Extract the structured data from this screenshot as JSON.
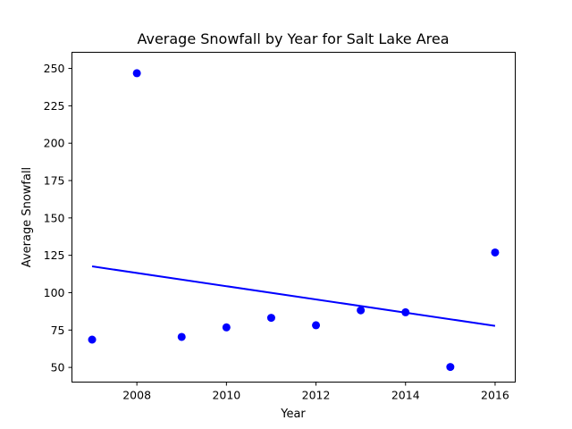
{
  "chart_data": {
    "type": "scatter",
    "title": "Average Snowfall by Year for Salt Lake Area",
    "xlabel": "Year",
    "ylabel": "Average Snowfall",
    "xlim": [
      2006.55,
      2016.45
    ],
    "ylim": [
      40.2,
      260.8
    ],
    "xticks": [
      2008,
      2010,
      2012,
      2014,
      2016
    ],
    "yticks": [
      50,
      75,
      100,
      125,
      150,
      175,
      200,
      225,
      250
    ],
    "grid": false,
    "series": [
      {
        "type": "scatter",
        "color": "#0000ff",
        "x": [
          2007,
          2008,
          2009,
          2010,
          2011,
          2012,
          2013,
          2014,
          2015,
          2016
        ],
        "y": [
          68.6,
          246.8,
          70.4,
          76.8,
          83.2,
          78.2,
          88.2,
          86.9,
          50.3,
          126.9
        ]
      },
      {
        "type": "line",
        "color": "#0000ff",
        "x": [
          2007,
          2016
        ],
        "y": [
          117.6,
          77.8
        ]
      }
    ]
  }
}
